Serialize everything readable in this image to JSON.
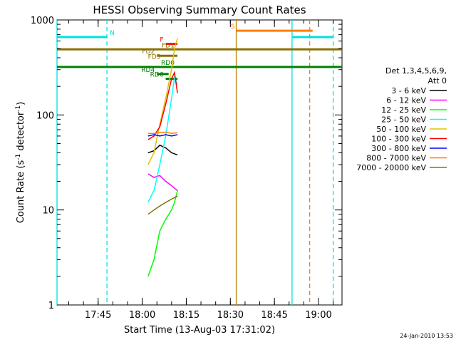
{
  "chart_data": {
    "type": "line",
    "title": "HESSI Observing Summary Count Rates",
    "xlabel": "Start Time (13-Aug-03 17:31:02)",
    "ylabel_main": "Count Rate (s",
    "ylabel_sup1": "-1",
    "ylabel_mid": " detector",
    "ylabel_sup2": "-1",
    "ylabel_end": ")",
    "y_scale": "log",
    "ylim": [
      1,
      1000
    ],
    "xlim": [
      "17:31",
      "19:08"
    ],
    "x_ticks": [
      "17:45",
      "18:00",
      "18:15",
      "18:30",
      "18:45",
      "19:00"
    ],
    "y_ticks": [
      "1",
      "10",
      "100",
      "1000"
    ],
    "legend_title": [
      "Det 1,3,4,5,6,9,",
      "Att 0"
    ],
    "legend_position": "right",
    "footer_date": "24-Jan-2010 13:53",
    "series": [
      {
        "name": "3 - 6 keV",
        "color": "#000000",
        "points": [
          [
            "18:02",
            40
          ],
          [
            "18:04",
            42
          ],
          [
            "18:06",
            48
          ],
          [
            "18:08",
            45
          ],
          [
            "18:10",
            40
          ],
          [
            "18:12",
            38
          ]
        ]
      },
      {
        "name": "6 - 12 keV",
        "color": "#ff00ff",
        "points": [
          [
            "18:02",
            24
          ],
          [
            "18:04",
            22
          ],
          [
            "18:06",
            23
          ],
          [
            "18:08",
            20
          ],
          [
            "18:10",
            18
          ],
          [
            "18:12",
            16
          ]
        ]
      },
      {
        "name": "12 - 25 keV",
        "color": "#00ff00",
        "points": [
          [
            "18:02",
            2
          ],
          [
            "18:04",
            3
          ],
          [
            "18:06",
            6
          ],
          [
            "18:08",
            8
          ],
          [
            "18:10",
            10
          ],
          [
            "18:11",
            12
          ],
          [
            "18:12",
            16
          ]
        ]
      },
      {
        "name": "25 - 50 keV",
        "color": "#00ffff",
        "points": [
          [
            "18:02",
            12
          ],
          [
            "18:04",
            16
          ],
          [
            "18:06",
            30
          ],
          [
            "18:08",
            60
          ],
          [
            "18:10",
            150
          ],
          [
            "18:11",
            250
          ],
          [
            "18:12",
            210
          ]
        ]
      },
      {
        "name": "50 - 100 keV",
        "color": "#e0c000",
        "points": [
          [
            "18:02",
            30
          ],
          [
            "18:04",
            40
          ],
          [
            "18:06",
            80
          ],
          [
            "18:08",
            150
          ],
          [
            "18:10",
            300
          ],
          [
            "18:11",
            500
          ],
          [
            "18:12",
            640
          ]
        ]
      },
      {
        "name": "100 - 300 keV",
        "color": "#ff0000",
        "points": [
          [
            "18:02",
            55
          ],
          [
            "18:04",
            60
          ],
          [
            "18:06",
            75
          ],
          [
            "18:08",
            130
          ],
          [
            "18:10",
            240
          ],
          [
            "18:11",
            280
          ],
          [
            "18:12",
            170
          ]
        ]
      },
      {
        "name": "300 - 800 keV",
        "color": "#0000ff",
        "points": [
          [
            "18:02",
            60
          ],
          [
            "18:04",
            62
          ],
          [
            "18:06",
            60
          ],
          [
            "18:08",
            62
          ],
          [
            "18:10",
            60
          ],
          [
            "18:12",
            62
          ]
        ]
      },
      {
        "name": "800 - 7000 keV",
        "color": "#ff8000",
        "points": [
          [
            "18:02",
            64
          ],
          [
            "18:04",
            64
          ],
          [
            "18:06",
            65
          ],
          [
            "18:08",
            66
          ],
          [
            "18:10",
            64
          ],
          [
            "18:12",
            65
          ]
        ]
      },
      {
        "name": "7000 - 20000 keV",
        "color": "#8b7000",
        "points": [
          [
            "18:02",
            9
          ],
          [
            "18:04",
            10
          ],
          [
            "18:06",
            11
          ],
          [
            "18:08",
            12
          ],
          [
            "18:10",
            13
          ],
          [
            "18:12",
            14
          ]
        ]
      }
    ],
    "flag_lines": [
      {
        "label": "N",
        "color": "#00e0e0",
        "y": 660,
        "segments": [
          [
            "17:31",
            "17:48"
          ],
          [
            "18:51",
            "19:05"
          ]
        ]
      },
      {
        "label": "S",
        "color": "#ff8000",
        "y": 770,
        "segments": [
          [
            "18:32",
            "18:58"
          ]
        ]
      },
      {
        "label": "F",
        "color": "#ff0000",
        "y": 560,
        "segments": [
          [
            "18:08",
            "18:12"
          ]
        ]
      },
      {
        "label": "FD1",
        "color": "#8b7000",
        "y": 490,
        "segments": [
          [
            "17:31",
            "19:08"
          ]
        ]
      },
      {
        "label": "FD2",
        "color": "#8b7000",
        "y": 420,
        "segments": [
          [
            "18:05",
            "18:12"
          ]
        ]
      },
      {
        "label": "FD3",
        "color": "#8b7000",
        "y": 370,
        "segments": []
      },
      {
        "label": "RD0",
        "color": "#008000",
        "y": 320,
        "segments": [
          [
            "17:31",
            "19:08"
          ]
        ]
      },
      {
        "label": "RD4",
        "color": "#008000",
        "y": 270,
        "segments": [
          [
            "18:05",
            "18:09"
          ]
        ]
      },
      {
        "label": "RD6",
        "color": "#008000",
        "y": 240,
        "segments": [
          [
            "18:08",
            "18:12"
          ]
        ]
      }
    ],
    "vertical_markers": [
      {
        "time": "17:31",
        "color": "#00e0e0",
        "style": "solid"
      },
      {
        "time": "17:48",
        "color": "#00e0e0",
        "style": "dashed"
      },
      {
        "time": "18:32",
        "color": "#c08000",
        "style": "solid"
      },
      {
        "time": "18:51",
        "color": "#00e0e0",
        "style": "solid"
      },
      {
        "time": "18:57",
        "color": "#ff8000",
        "style": "dashed"
      },
      {
        "time": "19:05",
        "color": "#00e0e0",
        "style": "dashed"
      }
    ]
  }
}
